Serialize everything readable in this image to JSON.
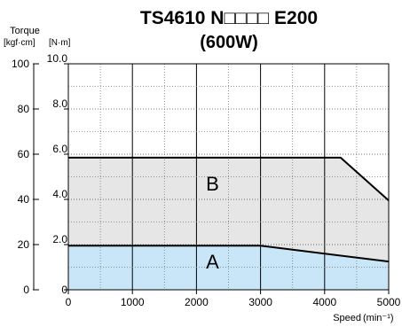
{
  "chart_data": {
    "type": "area",
    "title": "TS4610 N□□□□ E200",
    "subtitle": "(600W)",
    "xlabel": "Speed",
    "xlabel_unit": "(min⁻¹)",
    "ylabel": "Torque",
    "ylabel_units_left": "[kgf·cm]",
    "ylabel_units_right": "[N·m]",
    "xlim": [
      0,
      5000
    ],
    "ylim": [
      0,
      10
    ],
    "x_ticks": [
      0,
      1000,
      2000,
      3000,
      4000,
      5000
    ],
    "x_tick_labels": [
      "0",
      "1000",
      "2000",
      "3000",
      "4000",
      "5000"
    ],
    "y_ticks_nm": [
      0,
      2,
      4,
      6,
      8,
      10
    ],
    "y_tick_labels_nm": [
      "0",
      "2.0",
      "4.0",
      "6.0",
      "8.0",
      "10.0"
    ],
    "y_ticks_kgfcm": [
      0,
      20,
      40,
      60,
      80,
      100
    ],
    "y_tick_labels_kgfcm": [
      "0",
      "20",
      "40",
      "60",
      "80",
      "100"
    ],
    "grid": true,
    "grid_style": "dotted",
    "series": [
      {
        "name": "B",
        "fill": "#e6e6e6",
        "x": [
          0,
          4250,
          5000
        ],
        "y": [
          5.85,
          5.85,
          3.95
        ]
      },
      {
        "name": "A",
        "fill": "#c8e6f8",
        "x": [
          0,
          3000,
          5000
        ],
        "y": [
          1.95,
          1.95,
          1.25
        ]
      }
    ],
    "region_labels": [
      {
        "text": "B",
        "x": 2250,
        "y": 4.4
      },
      {
        "text": "A",
        "x": 2250,
        "y": 0.95
      }
    ]
  }
}
